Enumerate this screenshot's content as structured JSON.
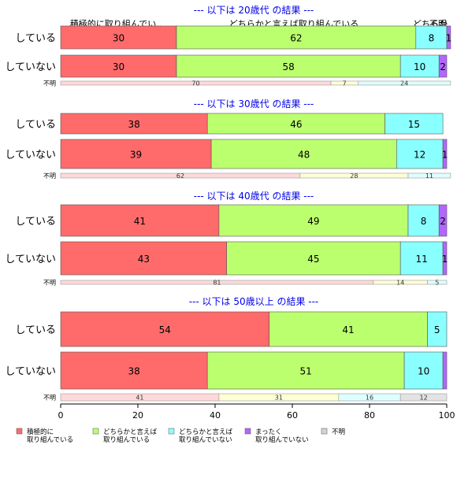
{
  "chart_data": {
    "type": "bar",
    "orientation": "horizontal",
    "stacked": true,
    "xlim": [
      0,
      100
    ],
    "x_ticks": [
      "0",
      "20",
      "40",
      "60",
      "80",
      "100"
    ],
    "column_headers": [
      "積極的に取り組んでい..",
      "どちらかと言えば取り組んでいる",
      "どちらか",
      "不明"
    ],
    "legend": {
      "position": "bottom",
      "items": [
        {
          "line1": "積極的に",
          "line2": "取り組んでいる",
          "color": "#FF6B6B"
        },
        {
          "line1": "どちらかと言えば",
          "line2": "取り組んでいる",
          "color": "#BBFF6E"
        },
        {
          "line1": "どちらかと言えば",
          "line2": "取り組んでいない",
          "color": "#8AFFFF"
        },
        {
          "line1": "まったく",
          "line2": "取り組んでいない",
          "color": "#B366FF"
        },
        {
          "line1": "不明",
          "line2": "",
          "color": "#D3D3D3"
        }
      ]
    },
    "missing_label": "不明",
    "groups": [
      {
        "title": "--- 以下は 20歳代 の結果 ---",
        "rows": [
          {
            "label": "している",
            "values": [
              30,
              62,
              8,
              1
            ],
            "labels": [
              "30",
              "62",
              "8",
              "1"
            ]
          },
          {
            "label": "していない",
            "values": [
              30,
              58,
              10,
              2
            ],
            "labels": [
              "30",
              "58",
              "10",
              "2"
            ]
          }
        ],
        "missing": {
          "values": [
            70,
            7,
            24
          ],
          "labels": [
            "70",
            "7",
            "24"
          ]
        }
      },
      {
        "title": "--- 以下は 30歳代 の結果 ---",
        "rows": [
          {
            "label": "している",
            "values": [
              38,
              46,
              15,
              0
            ],
            "labels": [
              "38",
              "46",
              "15",
              ""
            ]
          },
          {
            "label": "していない",
            "values": [
              39,
              48,
              12,
              1
            ],
            "labels": [
              "39",
              "48",
              "12",
              "1"
            ]
          }
        ],
        "missing": {
          "values": [
            62,
            28,
            11
          ],
          "labels": [
            "62",
            "28",
            "11"
          ]
        }
      },
      {
        "title": "--- 以下は 40歳代 の結果 ---",
        "rows": [
          {
            "label": "している",
            "values": [
              41,
              49,
              8,
              2
            ],
            "labels": [
              "41",
              "49",
              "8",
              "2"
            ]
          },
          {
            "label": "していない",
            "values": [
              43,
              45,
              11,
              1
            ],
            "labels": [
              "43",
              "45",
              "11",
              "1"
            ]
          }
        ],
        "missing": {
          "values": [
            81,
            14,
            5
          ],
          "labels": [
            "81",
            "14",
            "5"
          ]
        }
      },
      {
        "title": "--- 以下は 50歳以上 の結果 ---",
        "rows": [
          {
            "label": "している",
            "values": [
              54,
              41,
              5,
              0
            ],
            "labels": [
              "54",
              "41",
              "5",
              ""
            ]
          },
          {
            "label": "していない",
            "values": [
              38,
              51,
              10,
              1
            ],
            "labels": [
              "38",
              "51",
              "10",
              ""
            ]
          }
        ],
        "missing": {
          "values": [
            41,
            31,
            16,
            12
          ],
          "labels": [
            "41",
            "31",
            "16",
            "12"
          ]
        }
      }
    ]
  }
}
